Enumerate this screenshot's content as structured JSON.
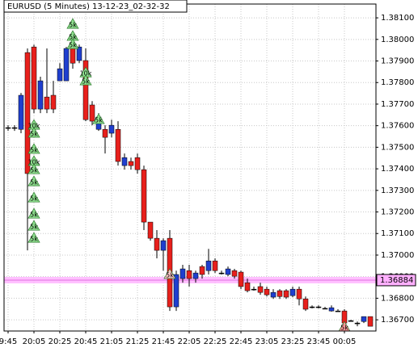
{
  "chart_data": {
    "type": "candlestick",
    "title": "EURUSD (5 Minutes) 13-12-23_02-32-32",
    "categories": [
      "9:45",
      null,
      null,
      null,
      "20:05",
      null,
      null,
      null,
      "20:25",
      null,
      null,
      null,
      "20:45",
      null,
      null,
      null,
      "21:05",
      null,
      null,
      null,
      "21:25",
      null,
      null,
      null,
      "21:45",
      null,
      null,
      null,
      "22:05",
      null,
      null,
      null,
      "22:25",
      null,
      null,
      null,
      "22:45",
      null,
      null,
      null,
      "23:05",
      null,
      null,
      null,
      "23:25",
      null,
      null,
      null,
      "23:45",
      null,
      null,
      null,
      "00:05",
      null,
      null,
      null,
      null
    ],
    "open": [
      1.37591,
      1.37591,
      1.37583,
      1.37939,
      1.37965,
      1.37677,
      1.37733,
      1.37741,
      1.37808,
      1.37808,
      1.37958,
      1.37902,
      1.37902,
      1.37696,
      1.37583,
      1.37583,
      1.37565,
      1.37583,
      1.37415,
      1.37434,
      1.37452,
      1.37396,
      1.37153,
      1.37078,
      1.37022,
      1.37078,
      1.3676,
      1.36891,
      1.36928,
      1.36891,
      1.36947,
      1.36928,
      1.36973,
      1.36917,
      1.3691,
      1.36928,
      1.36921,
      1.36872,
      1.36842,
      1.36854,
      1.36842,
      1.36805,
      1.36835,
      1.36835,
      1.36812,
      1.36842,
      1.36797,
      1.3676,
      1.3676,
      1.36753,
      1.36741,
      1.36741,
      1.36741,
      1.36696,
      1.36685,
      1.36692,
      1.36715
    ],
    "high": [
      1.37602,
      1.37602,
      1.37752,
      1.37958,
      1.37976,
      1.37827,
      1.37958,
      1.37808,
      1.3789,
      1.37965,
      1.37976,
      1.37976,
      1.37958,
      1.37714,
      1.37658,
      1.37602,
      1.37628,
      1.37621,
      1.37471,
      1.37452,
      1.37471,
      1.37415,
      1.37153,
      1.37116,
      1.37078,
      1.37116,
      1.36928,
      1.36955,
      1.36955,
      1.36928,
      1.36955,
      1.37029,
      1.36985,
      1.36928,
      1.36947,
      1.36936,
      1.36928,
      1.36891,
      1.36854,
      1.36872,
      1.36854,
      1.36842,
      1.36842,
      1.36842,
      1.36854,
      1.36854,
      1.36808,
      1.36767,
      1.36767,
      1.3676,
      1.36767,
      1.36749,
      1.36749,
      1.367,
      1.36692,
      1.36715,
      1.36715
    ],
    "low": [
      1.37576,
      1.37576,
      1.37565,
      1.37022,
      1.37658,
      1.37658,
      1.37658,
      1.37658,
      1.37808,
      1.37808,
      1.37864,
      1.3789,
      1.37621,
      1.37602,
      1.37576,
      1.37471,
      1.37546,
      1.37415,
      1.37396,
      1.37396,
      1.37378,
      1.37116,
      1.37067,
      1.36985,
      1.36928,
      1.36741,
      1.36741,
      1.36872,
      1.36854,
      1.36872,
      1.36891,
      1.3691,
      1.36917,
      1.3691,
      1.36902,
      1.36891,
      1.36842,
      1.36827,
      1.36835,
      1.36816,
      1.36808,
      1.36797,
      1.36797,
      1.36797,
      1.36805,
      1.36767,
      1.36741,
      1.36753,
      1.36753,
      1.36749,
      1.36738,
      1.36738,
      1.3667,
      1.36692,
      1.3667,
      1.36685,
      1.3667
    ],
    "close": [
      1.37591,
      1.37591,
      1.37741,
      1.37378,
      1.37677,
      1.37808,
      1.37677,
      1.37677,
      1.37864,
      1.37958,
      1.3789,
      1.37965,
      1.37628,
      1.37621,
      1.3764,
      1.37546,
      1.37602,
      1.37434,
      1.37452,
      1.37415,
      1.37396,
      1.37153,
      1.37078,
      1.37022,
      1.37067,
      1.3676,
      1.3691,
      1.36936,
      1.36891,
      1.36917,
      1.3691,
      1.36973,
      1.36928,
      1.36917,
      1.36936,
      1.36902,
      1.36854,
      1.36835,
      1.36842,
      1.36827,
      1.36816,
      1.36827,
      1.36808,
      1.36805,
      1.36842,
      1.36797,
      1.36749,
      1.3676,
      1.3676,
      1.36753,
      1.36756,
      1.36741,
      1.36685,
      1.36696,
      1.36685,
      1.36715,
      1.3667
    ],
    "up_color": "#1f3fcf",
    "down_color": "#e8201c",
    "ylim": [
      1.36648,
      1.38164
    ],
    "yticks": [
      {
        "value": 1.367,
        "label": "1.36700"
      },
      {
        "value": 1.368,
        "label": "1.36800"
      },
      {
        "value": 1.369,
        "label": "1.36900"
      },
      {
        "value": 1.37,
        "label": "1.37000"
      },
      {
        "value": 1.371,
        "label": "1.37100"
      },
      {
        "value": 1.372,
        "label": "1.37200"
      },
      {
        "value": 1.373,
        "label": "1.37300"
      },
      {
        "value": 1.374,
        "label": "1.37400"
      },
      {
        "value": 1.375,
        "label": "1.37500"
      },
      {
        "value": 1.376,
        "label": "1.37600"
      },
      {
        "value": 1.377,
        "label": "1.37700"
      },
      {
        "value": 1.378,
        "label": "1.37800"
      },
      {
        "value": 1.379,
        "label": "1.37900"
      },
      {
        "value": 1.38,
        "label": "1.38000"
      },
      {
        "value": 1.381,
        "label": "1.38100"
      }
    ],
    "grid": true,
    "price_line": 1.36884,
    "price_line_color": "#ffb0ff",
    "trades": [
      {
        "label": "10k",
        "index": 4,
        "price": 1.37602,
        "color": "#8fe08f"
      },
      {
        "label": "5k",
        "index": 4,
        "price": 1.37565,
        "color": "#8fe08f"
      },
      {
        "label": "5k",
        "index": 4,
        "price": 1.3749,
        "color": "#8fe08f"
      },
      {
        "label": "10k",
        "index": 4,
        "price": 1.37434,
        "color": "#8fe08f"
      },
      {
        "label": "5k",
        "index": 4,
        "price": 1.37396,
        "color": "#8fe08f"
      },
      {
        "label": "5k",
        "index": 4,
        "price": 1.3734,
        "color": "#8fe08f"
      },
      {
        "label": "5k",
        "index": 4,
        "price": 1.37265,
        "color": "#8fe08f"
      },
      {
        "label": "5k",
        "index": 4,
        "price": 1.3719,
        "color": "#8fe08f"
      },
      {
        "label": "5k",
        "index": 4,
        "price": 1.37134,
        "color": "#8fe08f"
      },
      {
        "label": "5k",
        "index": 4,
        "price": 1.37078,
        "color": "#8fe08f"
      },
      {
        "label": "5k",
        "index": 10,
        "price": 1.3807,
        "color": "#8fe08f"
      },
      {
        "label": "5k",
        "index": 10,
        "price": 1.38014,
        "color": "#8fe08f"
      },
      {
        "label": "5k",
        "index": 10,
        "price": 1.37976,
        "color": "#8fe08f"
      },
      {
        "label": "10k",
        "index": 12,
        "price": 1.37845,
        "color": "#8fe08f"
      },
      {
        "label": "5k",
        "index": 12,
        "price": 1.37808,
        "color": "#8fe08f"
      },
      {
        "label": "5k",
        "index": 14,
        "price": 1.37628,
        "color": "#8fe08f"
      },
      {
        "label": "5k",
        "index": 25,
        "price": 1.3691,
        "color": "#ffc8c8"
      },
      {
        "label": "5k",
        "index": 52,
        "price": 1.36666,
        "color": "#ff9a9a"
      }
    ]
  }
}
